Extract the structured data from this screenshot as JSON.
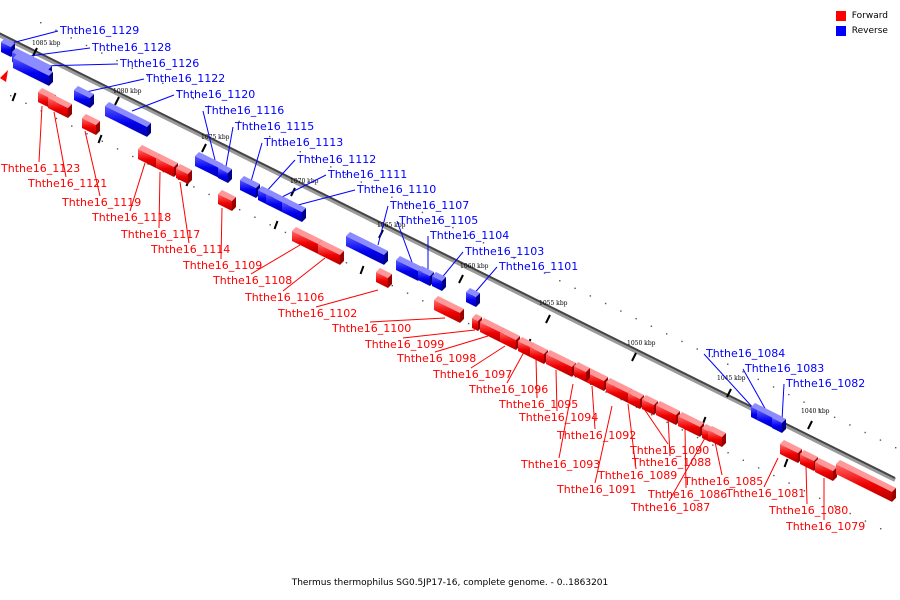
{
  "legend": {
    "forward_label": "Forward",
    "reverse_label": "Reverse",
    "forward_color": "#ff0000",
    "reverse_color": "#0000ff"
  },
  "caption": "Thermus thermophilus SG0.5JP17-16, complete genome. - 0..1863201",
  "scale_ticks": [
    "1085 kbp",
    "1080 kbp",
    "1075 kbp",
    "1070 kbp",
    "1065 kbp",
    "1060 kbp",
    "1055 kbp",
    "1050 kbp",
    "1045 kbp",
    "1040 kbp"
  ],
  "reverse_genes": [
    "Ththe16_1129",
    "Ththe16_1128",
    "Ththe16_1126",
    "Ththe16_1122",
    "Ththe16_1120",
    "Ththe16_1116",
    "Ththe16_1115",
    "Ththe16_1113",
    "Ththe16_1112",
    "Ththe16_1111",
    "Ththe16_1110",
    "Ththe16_1107",
    "Ththe16_1105",
    "Ththe16_1104",
    "Ththe16_1103",
    "Ththe16_1101",
    "Ththe16_1084",
    "Ththe16_1083",
    "Ththe16_1082"
  ],
  "forward_genes": [
    "Ththe16_1123",
    "Ththe16_1121",
    "Ththe16_1119",
    "Ththe16_1118",
    "Ththe16_1117",
    "Ththe16_1114",
    "Ththe16_1109",
    "Ththe16_1108",
    "Ththe16_1106",
    "Ththe16_1102",
    "Ththe16_1100",
    "Ththe16_1099",
    "Ththe16_1098",
    "Ththe16_1097",
    "Ththe16_1096",
    "Ththe16_1095",
    "Ththe16_1094",
    "Ththe16_1092",
    "Ththe16_1093",
    "Ththe16_1090",
    "Ththe16_1089",
    "Ththe16_1091",
    "Ththe16_1088",
    "Ththe16_1086",
    "Ththe16_1087",
    "Ththe16_1085",
    "Ththe16_1081",
    "Ththe16_1080",
    "Ththe16_1079"
  ]
}
